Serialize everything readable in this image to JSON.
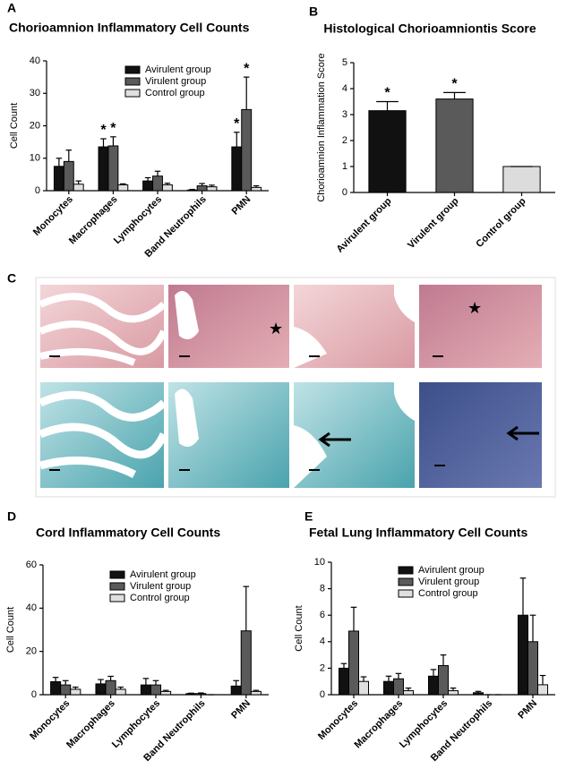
{
  "chart_data": [
    {
      "type": "bar",
      "panel": "A",
      "title": "Chorioamnion Inflammatory Cell Counts",
      "y_label": "Cell Count",
      "categories": [
        "Monocytes",
        "Macrophages",
        "Lymphocytes",
        "Band Neutrophils",
        "PMN"
      ],
      "series": [
        {
          "name": "Avirulent group",
          "color": "#111111",
          "values": [
            7.5,
            13.5,
            3,
            0.2,
            13.5
          ],
          "errors": [
            2.5,
            2.5,
            1,
            0.2,
            4.5
          ],
          "marks": [
            null,
            "*",
            null,
            null,
            "*"
          ]
        },
        {
          "name": "Virulent group",
          "color": "#5a5a5a",
          "values": [
            9,
            13.8,
            4.5,
            1.5,
            25
          ],
          "errors": [
            3.5,
            2.8,
            1.5,
            0.7,
            10
          ],
          "marks": [
            null,
            "*",
            null,
            null,
            "*"
          ]
        },
        {
          "name": "Control group",
          "color": "#e0e0e0",
          "values": [
            2,
            1.8,
            1.8,
            1.2,
            1
          ],
          "errors": [
            1,
            0.3,
            0.5,
            0.5,
            0.5
          ],
          "marks": [
            null,
            null,
            null,
            null,
            null
          ]
        }
      ],
      "ylim": [
        0,
        40
      ],
      "yticks": [
        0,
        10,
        20,
        30,
        40
      ]
    },
    {
      "type": "bar",
      "panel": "B",
      "title": "Histological Chorioamniontis Score",
      "y_label": "Chorioamnion Inflammation Score",
      "categories": [
        "Avirulent group",
        "Virulent group",
        "Control group"
      ],
      "series": [
        {
          "colors": [
            "#111111",
            "#5a5a5a",
            "#dcdcdc"
          ],
          "values": [
            3.15,
            3.6,
            1
          ],
          "errors": [
            0.35,
            0.25,
            0
          ],
          "marks": [
            "*",
            "*",
            null
          ]
        }
      ],
      "ylim": [
        0,
        5
      ],
      "yticks": [
        0,
        1,
        2,
        3,
        4,
        5
      ]
    },
    {
      "type": "bar",
      "panel": "D",
      "title": "Cord Inflammatory Cell Counts",
      "y_label": "Cell Count",
      "categories": [
        "Monocytes",
        "Macrophages",
        "Lymphocytes",
        "Band Neutrophils",
        "PMN"
      ],
      "series": [
        {
          "name": "Avirulent group",
          "color": "#111111",
          "values": [
            6,
            5,
            4.5,
            0.5,
            4
          ],
          "errors": [
            2,
            2,
            3,
            0.2,
            2.5
          ]
        },
        {
          "name": "Virulent group",
          "color": "#5a5a5a",
          "values": [
            4.5,
            6.5,
            4.5,
            0.5,
            29.5
          ],
          "errors": [
            2,
            2,
            2,
            0.3,
            20.5
          ]
        },
        {
          "name": "Control group",
          "color": "#e0e0e0",
          "values": [
            2.5,
            2.5,
            1.5,
            0,
            1.5
          ],
          "errors": [
            1,
            1,
            0.5,
            0,
            0.5
          ]
        }
      ],
      "ylim": [
        0,
        60
      ],
      "yticks": [
        0,
        20,
        40,
        60
      ]
    },
    {
      "type": "bar",
      "panel": "E",
      "title": "Fetal Lung Inflammatory Cell Counts",
      "y_label": "Cell Count",
      "categories": [
        "Monocytes",
        "Macrophages",
        "Lymphocytes",
        "Band Neutrophils",
        "PMN"
      ],
      "series": [
        {
          "name": "Avirulent group",
          "color": "#111111",
          "values": [
            2,
            1,
            1.4,
            0.15,
            6
          ],
          "errors": [
            0.35,
            0.4,
            0.5,
            0.1,
            2.8
          ]
        },
        {
          "name": "Virulent group",
          "color": "#5a5a5a",
          "values": [
            4.8,
            1.2,
            2.2,
            0,
            4
          ],
          "errors": [
            1.8,
            0.4,
            0.8,
            0,
            2
          ]
        },
        {
          "name": "Control group",
          "color": "#e0e0e0",
          "values": [
            1,
            0.3,
            0.3,
            0,
            0.75
          ],
          "errors": [
            0.35,
            0.2,
            0.2,
            0,
            0.7
          ]
        }
      ],
      "ylim": [
        0,
        10
      ],
      "yticks": [
        0,
        2,
        4,
        6,
        8,
        10
      ]
    }
  ],
  "image_panel": {
    "panel": "C"
  }
}
